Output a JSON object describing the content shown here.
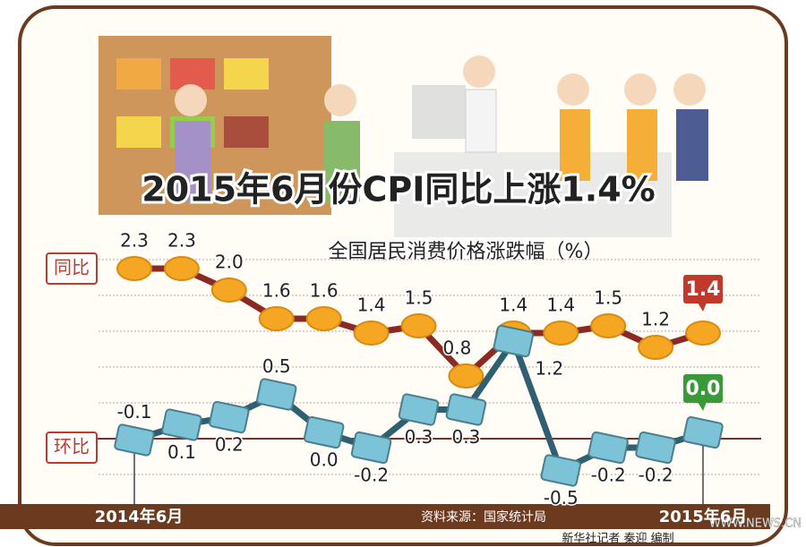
{
  "chart_data": {
    "type": "line",
    "title": "2015年6月份CPI同比上涨1.4%",
    "subtitle": "全国居民消费价格涨跌幅（%）",
    "categories": [
      "2014年6月",
      null,
      null,
      null,
      null,
      null,
      null,
      null,
      null,
      null,
      null,
      null,
      "2015年6月"
    ],
    "series": [
      {
        "name": "同比",
        "color": "#8b2a22",
        "marker_color": "#f5a623",
        "values": [
          2.3,
          2.3,
          2.0,
          1.6,
          1.6,
          1.4,
          1.5,
          0.8,
          1.4,
          1.4,
          1.5,
          1.2,
          1.4
        ],
        "value_labels": [
          "2.3",
          "2.3",
          "2.0",
          "1.6",
          "1.6",
          "1.4",
          "1.5",
          "0.8",
          "1.4",
          "1.4",
          "1.5",
          "1.2",
          "1.4"
        ]
      },
      {
        "name": "环比",
        "color": "#2f5f70",
        "marker_color": "#7cc3d8",
        "values": [
          -0.1,
          0.1,
          0.2,
          0.5,
          0.0,
          -0.2,
          0.3,
          0.3,
          1.2,
          -0.5,
          -0.2,
          -0.2,
          0.0
        ],
        "value_labels": [
          "-0.1",
          "0.1",
          "0.2",
          "0.5",
          "0.0",
          "-0.2",
          "0.3",
          "0.3",
          "1.2",
          "-0.5",
          "-0.2",
          "-0.2",
          "0.0"
        ]
      }
    ],
    "source": "资料来源：国家统计局",
    "credit": "新华社记者 秦迎 编制",
    "watermark": "WWW.NEWS.CN"
  }
}
